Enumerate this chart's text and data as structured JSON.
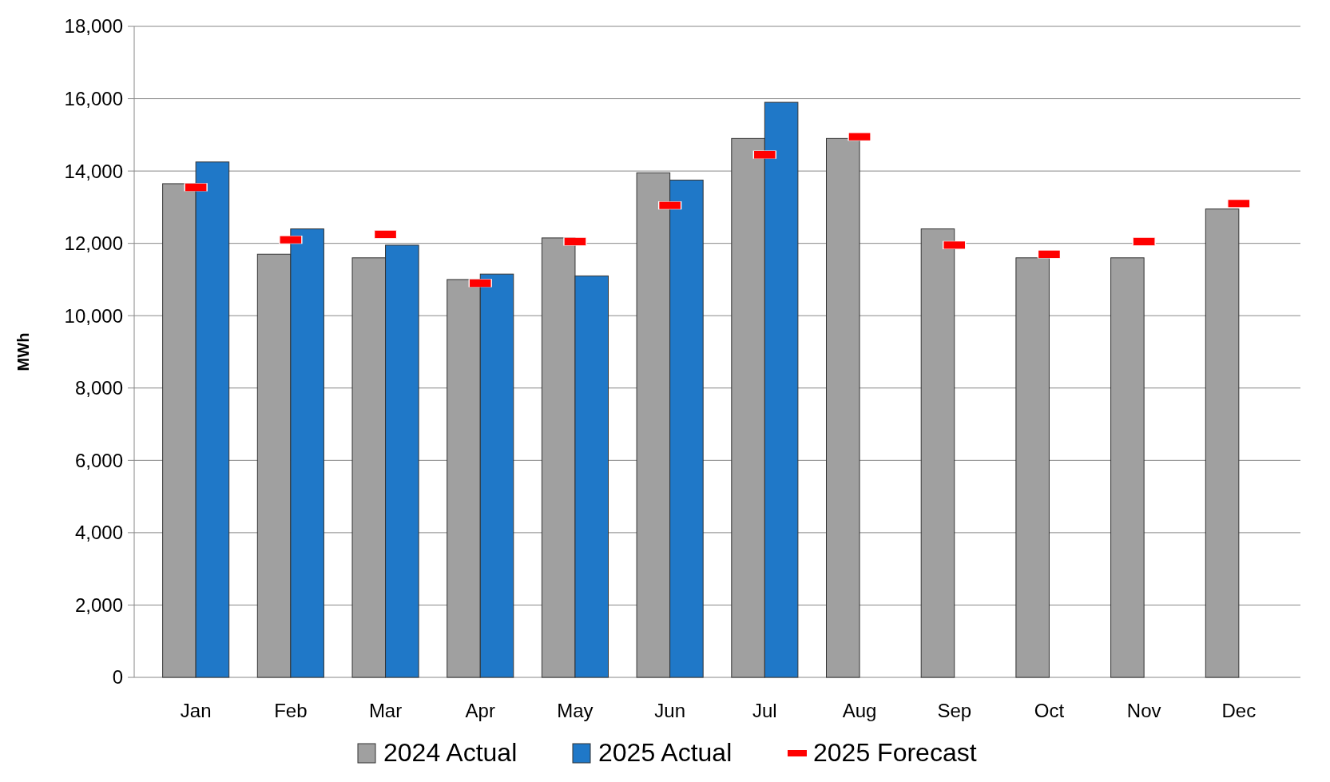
{
  "chart_data": {
    "type": "bar",
    "ylabel": "MWh",
    "categories": [
      "Jan",
      "Feb",
      "Mar",
      "Apr",
      "May",
      "Jun",
      "Jul",
      "Aug",
      "Sep",
      "Oct",
      "Nov",
      "Dec"
    ],
    "series": [
      {
        "name": "2024 Actual",
        "color": "#a0a0a0",
        "values": [
          13650,
          11700,
          11600,
          11000,
          12150,
          13950,
          14900,
          14900,
          12400,
          11600,
          11600,
          12950
        ]
      },
      {
        "name": "2025 Actual",
        "color": "#1f78c8",
        "values": [
          14250,
          12400,
          11950,
          11150,
          11100,
          13750,
          15900,
          null,
          null,
          null,
          null,
          null
        ]
      },
      {
        "name": "2025 Forecast",
        "type": "scatter",
        "marker": "square",
        "color": "#ff0000",
        "values": [
          13550,
          12100,
          12250,
          10900,
          12050,
          13050,
          14450,
          14950,
          11950,
          11700,
          12050,
          13100
        ]
      }
    ],
    "ylim": [
      0,
      18000
    ],
    "yticks": [
      {
        "value": 0,
        "label": "0"
      },
      {
        "value": 2000,
        "label": "2,000"
      },
      {
        "value": 4000,
        "label": "4,000"
      },
      {
        "value": 6000,
        "label": "6,000"
      },
      {
        "value": 8000,
        "label": "8,000"
      },
      {
        "value": 10000,
        "label": "10,000"
      },
      {
        "value": 12000,
        "label": "12,000"
      },
      {
        "value": 14000,
        "label": "14,000"
      },
      {
        "value": 16000,
        "label": "16,000"
      },
      {
        "value": 18000,
        "label": "18,000"
      }
    ],
    "grid": "y",
    "legend": "bottom"
  }
}
